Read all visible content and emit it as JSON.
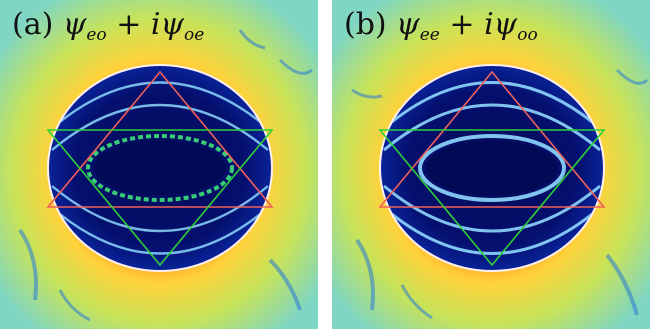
{
  "panels": [
    {
      "tag": "(a)",
      "term1": {
        "symbol": "ψ",
        "sub": "eo"
      },
      "operator": "+",
      "coef": "i",
      "term2": {
        "symbol": "ψ",
        "sub": "oe"
      }
    },
    {
      "tag": "(b)",
      "term1": {
        "symbol": "ψ",
        "sub": "ee"
      },
      "operator": "+",
      "coef": "i",
      "term2": {
        "symbol": "ψ",
        "sub": "oo"
      }
    }
  ],
  "colors": {
    "background_field": "#c7e35a",
    "hot_field": "#ff8a1e",
    "cavity_dark": "#05106e",
    "ring_bright": "#8fd8ff",
    "boundary": "#fff0f0",
    "triangle_up": "#f0605a",
    "triangle_down": "#2ecf3a"
  }
}
